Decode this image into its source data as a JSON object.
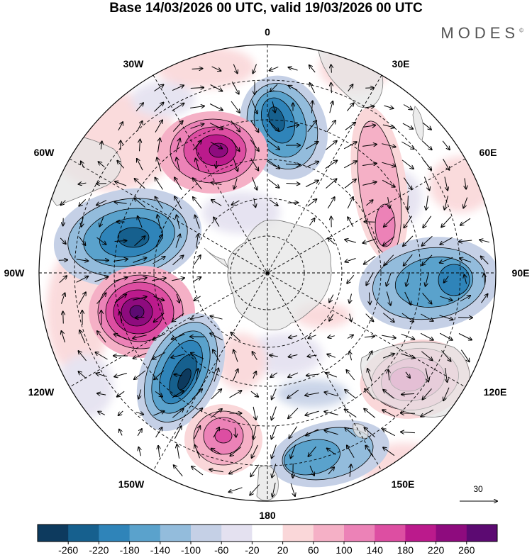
{
  "title": "Base 14/03/2026 00 UTC, valid 19/03/2026 00 UTC",
  "brand": "MODES",
  "brand_mark": "©",
  "longitude_labels": {
    "lon_0": "0",
    "lon_30e": "30E",
    "lon_60e": "60E",
    "lon_90e": "90E",
    "lon_120e": "120E",
    "lon_150e": "150E",
    "lon_180": "180",
    "lon_150w": "150W",
    "lon_120w": "120W",
    "lon_90w": "90W",
    "lon_60w": "60W",
    "lon_30w": "30W"
  },
  "vector_reference": {
    "label": "30"
  },
  "colorbar": {
    "tick_labels": [
      "-260",
      "-220",
      "-180",
      "-140",
      "-100",
      "-60",
      "-20",
      "20",
      "60",
      "100",
      "140",
      "180",
      "220",
      "260"
    ],
    "colors": [
      "#0d3a5e",
      "#16608e",
      "#2f84b9",
      "#5aa2cc",
      "#93bcdc",
      "#c5d0e6",
      "#e4e1f0",
      "#ffffff",
      "#fad7d9",
      "#f5b0c6",
      "#ec82b7",
      "#dd4ea2",
      "#bb1a8c",
      "#8e0b7e",
      "#5c0a72"
    ]
  },
  "colors": {
    "land": "#e6e6e6",
    "coast": "#777777",
    "grid": "#000000"
  }
}
